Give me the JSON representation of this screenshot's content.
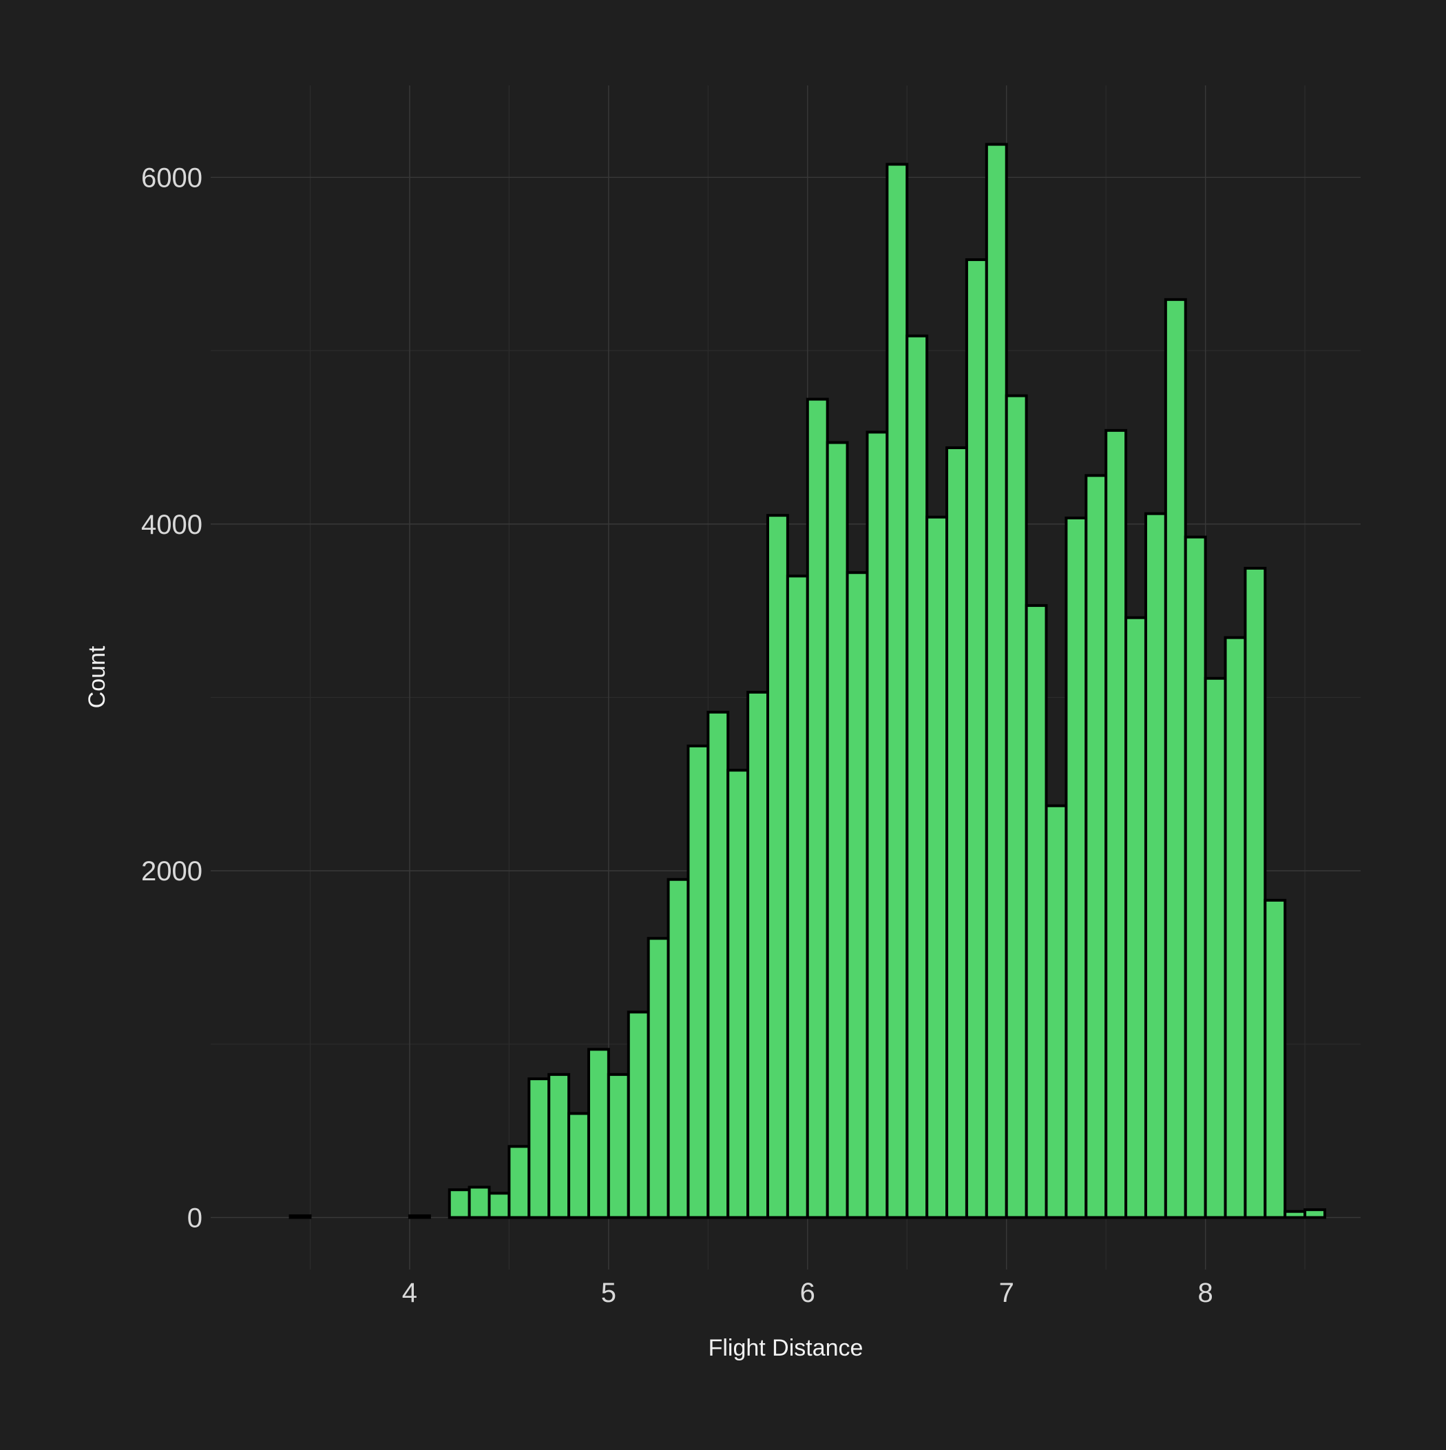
{
  "chart_data": {
    "type": "bar",
    "subtype": "histogram",
    "title": "",
    "xlabel": "Flight Distance",
    "ylabel": "Count",
    "xlim": [
      3.0,
      8.78
    ],
    "ylim": [
      -300,
      6530
    ],
    "x_ticks": [
      4,
      5,
      6,
      7,
      8
    ],
    "x_tick_labels": [
      "4",
      "5",
      "6",
      "7",
      "8"
    ],
    "x_minor_ticks": [
      3.5,
      4.5,
      5.5,
      6.5,
      7.5,
      8.5
    ],
    "y_ticks": [
      0,
      2000,
      4000,
      6000
    ],
    "y_tick_labels": [
      "0",
      "2000",
      "4000",
      "6000"
    ],
    "y_minor_ticks": [
      1000,
      3000,
      5000
    ],
    "grid": true,
    "legend": "none",
    "colors": {
      "background": "#1f1f1f",
      "bar_fill": "#52d46b",
      "bar_edge": "#000000",
      "grid_major": "#393939",
      "grid_minor": "#2c2c2c",
      "tick_text": "#d9d9d9",
      "title_text": "#f2f2f2"
    },
    "bin_width": 0.1,
    "x": [
      3.4,
      3.5,
      3.6,
      3.7,
      3.8,
      3.9,
      4.0,
      4.1,
      4.2,
      4.3,
      4.4,
      4.5,
      4.6,
      4.7,
      4.8,
      4.9,
      5.0,
      5.1,
      5.2,
      5.3,
      5.4,
      5.5,
      5.6,
      5.7,
      5.8,
      5.9,
      6.0,
      6.1,
      6.2,
      6.3,
      6.4,
      6.5,
      6.6,
      6.7,
      6.8,
      6.9,
      7.0,
      7.1,
      7.2,
      7.3,
      7.4,
      7.5,
      7.6,
      7.7,
      7.8,
      7.9,
      8.0,
      8.1,
      8.2,
      8.3,
      8.4,
      8.5
    ],
    "values": [
      10,
      0,
      0,
      0,
      0,
      0,
      10,
      0,
      160,
      175,
      140,
      410,
      800,
      825,
      600,
      970,
      825,
      1185,
      1610,
      1950,
      2720,
      2915,
      2580,
      3030,
      4050,
      3700,
      4720,
      4470,
      3720,
      4530,
      6075,
      5085,
      4040,
      4440,
      5525,
      6190,
      4740,
      3530,
      2375,
      4035,
      4280,
      4540,
      3460,
      4060,
      5295,
      3925,
      3110,
      3345,
      3745,
      1830,
      35,
      45
    ]
  }
}
